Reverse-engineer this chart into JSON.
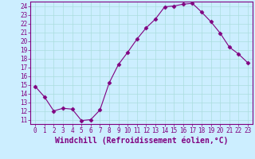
{
  "x": [
    0,
    1,
    2,
    3,
    4,
    5,
    6,
    7,
    8,
    9,
    10,
    11,
    12,
    13,
    14,
    15,
    16,
    17,
    18,
    19,
    20,
    21,
    22,
    23
  ],
  "y": [
    14.8,
    13.6,
    12.0,
    12.3,
    12.2,
    10.9,
    11.0,
    12.1,
    15.2,
    17.3,
    18.7,
    20.2,
    21.5,
    22.5,
    23.9,
    24.0,
    24.2,
    24.3,
    23.3,
    22.2,
    20.9,
    19.3,
    18.5,
    17.5
  ],
  "line_color": "#800080",
  "marker": "D",
  "marker_size": 2.5,
  "bg_color": "#cceeff",
  "grid_color": "#aadddd",
  "xlabel": "Windchill (Refroidissement éolien,°C)",
  "ylim": [
    10.5,
    24.5
  ],
  "xlim": [
    -0.5,
    23.5
  ],
  "yticks": [
    11,
    12,
    13,
    14,
    15,
    16,
    17,
    18,
    19,
    20,
    21,
    22,
    23,
    24
  ],
  "xticks": [
    0,
    1,
    2,
    3,
    4,
    5,
    6,
    7,
    8,
    9,
    10,
    11,
    12,
    13,
    14,
    15,
    16,
    17,
    18,
    19,
    20,
    21,
    22,
    23
  ],
  "tick_fontsize": 5.5,
  "xlabel_fontsize": 7.0
}
